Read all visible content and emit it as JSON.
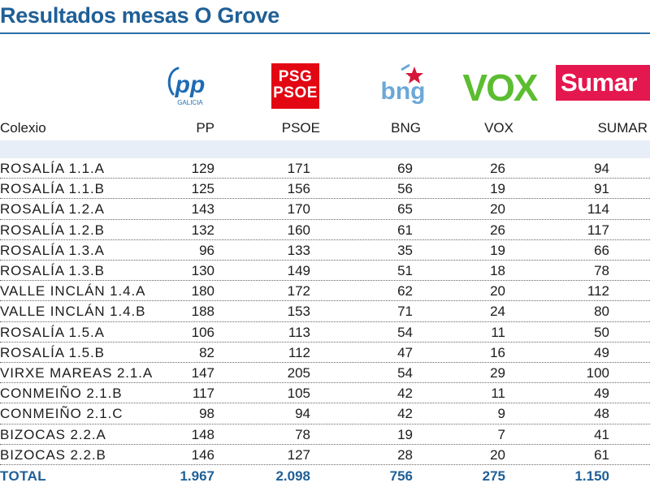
{
  "title": "Resultados mesas O Grove",
  "logos": {
    "pp": {
      "text": "pp",
      "sub": "GALICIA",
      "color": "#1d6bb5"
    },
    "psoe": {
      "line1": "PSG",
      "line2": "PSOE",
      "color": "#e30613"
    },
    "bng": {
      "text": "bng",
      "color": "#6aa8d8",
      "star_color": "#d6173a"
    },
    "vox": {
      "text": "VOX",
      "color": "#5cbd31"
    },
    "sumar": {
      "text": "Sumar",
      "color": "#e5174f"
    }
  },
  "chart_data": {
    "type": "table",
    "columns": [
      "Colexio",
      "PP",
      "PSOE",
      "BNG",
      "VOX",
      "SUMAR"
    ],
    "rows": [
      [
        "ROSALÍA 1.1.A",
        "129",
        "171",
        "69",
        "26",
        "94"
      ],
      [
        "ROSALÍA 1.1.B",
        "125",
        "156",
        "56",
        "19",
        "91"
      ],
      [
        "ROSALÍA 1.2.A",
        "143",
        "170",
        "65",
        "20",
        "114"
      ],
      [
        "ROSALÍA 1.2.B",
        "132",
        "160",
        "61",
        "26",
        "117"
      ],
      [
        "ROSALÍA 1.3.A",
        "96",
        "133",
        "35",
        "19",
        "66"
      ],
      [
        "ROSALÍA 1.3.B",
        "130",
        "149",
        "51",
        "18",
        "78"
      ],
      [
        "VALLE INCLÁN 1.4.A",
        "180",
        "172",
        "62",
        "20",
        "112"
      ],
      [
        "VALLE INCLÁN 1.4.B",
        "188",
        "153",
        "71",
        "24",
        "80"
      ],
      [
        "ROSALÍA 1.5.A",
        "106",
        "113",
        "54",
        "11",
        "50"
      ],
      [
        "ROSALÍA 1.5.B",
        "82",
        "112",
        "47",
        "16",
        "49"
      ],
      [
        "VIRXE MAREAS 2.1.A",
        "147",
        "205",
        "54",
        "29",
        "100"
      ],
      [
        "CONMEIÑO 2.1.B",
        "117",
        "105",
        "42",
        "11",
        "49"
      ],
      [
        "CONMEIÑO 2.1.C",
        "98",
        "94",
        "42",
        "9",
        "48"
      ],
      [
        "BIZOCAS 2.2.A",
        "148",
        "78",
        "19",
        "7",
        "41"
      ],
      [
        "BIZOCAS 2.2.B",
        "146",
        "127",
        "28",
        "20",
        "61"
      ]
    ],
    "total": [
      "TOTAL",
      "1.967",
      "2.098",
      "756",
      "275",
      "1.150"
    ]
  }
}
